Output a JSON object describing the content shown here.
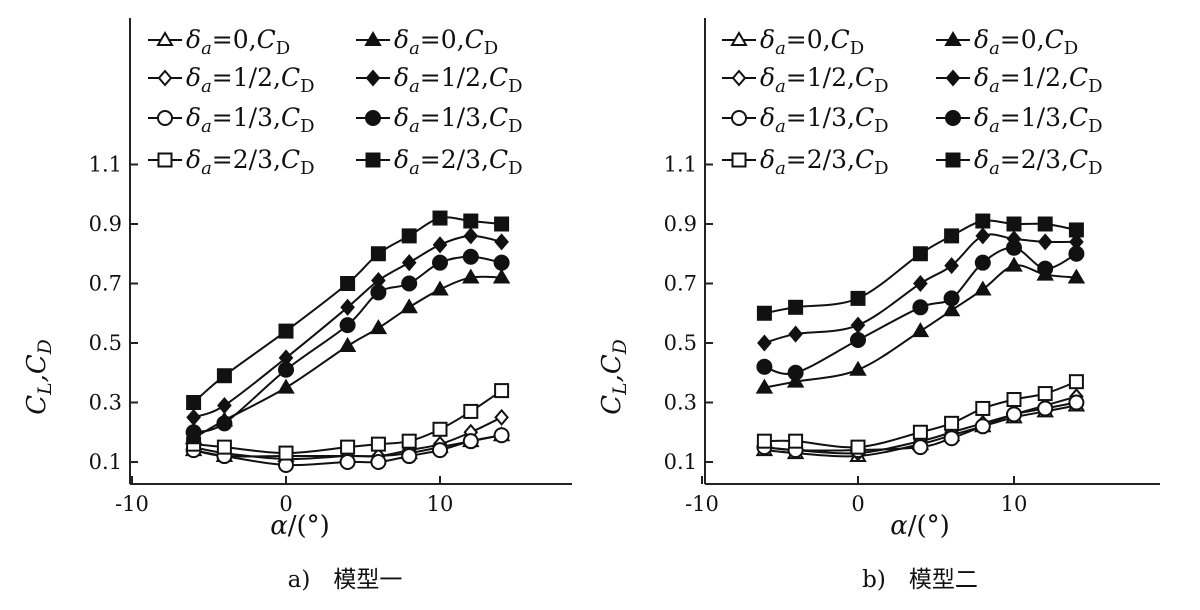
{
  "chart_data": [
    {
      "type": "line",
      "caption": "a)　模型一",
      "xlabel": "α/(°)",
      "ylabel": "C_L,C_D",
      "xlim": [
        -12,
        18.5
      ],
      "ylim": [
        0.05,
        1.3
      ],
      "xticks": [
        -10,
        0,
        10
      ],
      "xtick_labels": [
        "-10",
        "0",
        "10"
      ],
      "yticks": [
        0.1,
        0.3,
        0.5,
        0.7,
        0.9,
        1.1
      ],
      "ytick_labels": [
        "0.1",
        "0.3",
        "0.5",
        "0.7",
        "0.9",
        "1.1"
      ],
      "grid": false,
      "legend_position": "top",
      "x": [
        -6,
        -4,
        0,
        4,
        6,
        8,
        10,
        12,
        14
      ],
      "series": [
        {
          "name": "δa=0,CD",
          "marker": "triangle-open",
          "values": [
            0.14,
            0.12,
            0.12,
            0.12,
            0.12,
            0.13,
            0.15,
            0.17,
            0.19
          ]
        },
        {
          "name": "δa=1/2,CD",
          "marker": "diamond-open",
          "values": [
            0.15,
            0.13,
            0.11,
            0.12,
            0.12,
            0.14,
            0.16,
            0.2,
            0.25
          ]
        },
        {
          "name": "δa=1/3,CD",
          "marker": "circle-open",
          "values": [
            0.14,
            0.12,
            0.09,
            0.1,
            0.1,
            0.12,
            0.14,
            0.17,
            0.19
          ]
        },
        {
          "name": "δa=2/3,CD",
          "marker": "square-open",
          "values": [
            0.16,
            0.15,
            0.13,
            0.15,
            0.16,
            0.17,
            0.21,
            0.27,
            0.34
          ]
        },
        {
          "name": "δa=0,CD",
          "marker": "triangle-filled",
          "values": [
            0.18,
            0.24,
            0.35,
            0.49,
            0.55,
            0.62,
            0.68,
            0.72,
            0.72
          ]
        },
        {
          "name": "δa=1/2,CD",
          "marker": "diamond-filled",
          "values": [
            0.25,
            0.29,
            0.45,
            0.62,
            0.71,
            0.77,
            0.83,
            0.86,
            0.84
          ]
        },
        {
          "name": "δa=1/3,CD",
          "marker": "circle-filled",
          "values": [
            0.2,
            0.23,
            0.41,
            0.56,
            0.67,
            0.7,
            0.77,
            0.79,
            0.77
          ]
        },
        {
          "name": "δa=2/3,CD",
          "marker": "square-filled",
          "values": [
            0.3,
            0.39,
            0.54,
            0.7,
            0.8,
            0.86,
            0.92,
            0.91,
            0.9
          ]
        }
      ]
    },
    {
      "type": "line",
      "caption": "b)　模型二",
      "xlabel": "α/(°)",
      "ylabel": "C_L,C_D",
      "xlim": [
        -11,
        20
      ],
      "ylim": [
        0.05,
        1.3
      ],
      "xticks": [
        -10,
        0,
        10
      ],
      "xtick_labels": [
        "-10",
        "0",
        "10"
      ],
      "yticks": [
        0.1,
        0.3,
        0.5,
        0.7,
        0.9,
        1.1
      ],
      "ytick_labels": [
        "0.1",
        "0.3",
        "0.5",
        "0.7",
        "0.9",
        "1.1"
      ],
      "grid": false,
      "legend_position": "top",
      "x": [
        -6,
        -4,
        0,
        4,
        6,
        8,
        10,
        12,
        14
      ],
      "series": [
        {
          "name": "δa=0,CD",
          "marker": "triangle-open",
          "values": [
            0.14,
            0.13,
            0.12,
            0.16,
            0.19,
            0.22,
            0.25,
            0.27,
            0.29
          ]
        },
        {
          "name": "δa=1/2,CD",
          "marker": "diamond-open",
          "values": [
            0.15,
            0.14,
            0.13,
            0.17,
            0.2,
            0.23,
            0.26,
            0.29,
            0.32
          ]
        },
        {
          "name": "δa=1/3,CD",
          "marker": "circle-open",
          "values": [
            0.15,
            0.14,
            0.14,
            0.15,
            0.18,
            0.22,
            0.26,
            0.28,
            0.3
          ]
        },
        {
          "name": "δa=2/3,CD",
          "marker": "square-open",
          "values": [
            0.17,
            0.17,
            0.15,
            0.2,
            0.23,
            0.28,
            0.31,
            0.33,
            0.37
          ]
        },
        {
          "name": "δa=0,CD",
          "marker": "triangle-filled",
          "values": [
            0.35,
            0.37,
            0.41,
            0.54,
            0.61,
            0.68,
            0.76,
            0.73,
            0.72
          ]
        },
        {
          "name": "δa=1/2,CD",
          "marker": "diamond-filled",
          "values": [
            0.5,
            0.53,
            0.56,
            0.7,
            0.76,
            0.86,
            0.85,
            0.84,
            0.84
          ]
        },
        {
          "name": "δa=1/3,CD",
          "marker": "circle-filled",
          "values": [
            0.42,
            0.4,
            0.51,
            0.62,
            0.65,
            0.77,
            0.82,
            0.75,
            0.8
          ]
        },
        {
          "name": "δa=2/3,CD",
          "marker": "square-filled",
          "values": [
            0.6,
            0.62,
            0.65,
            0.8,
            0.86,
            0.91,
            0.9,
            0.9,
            0.88
          ]
        }
      ]
    }
  ]
}
